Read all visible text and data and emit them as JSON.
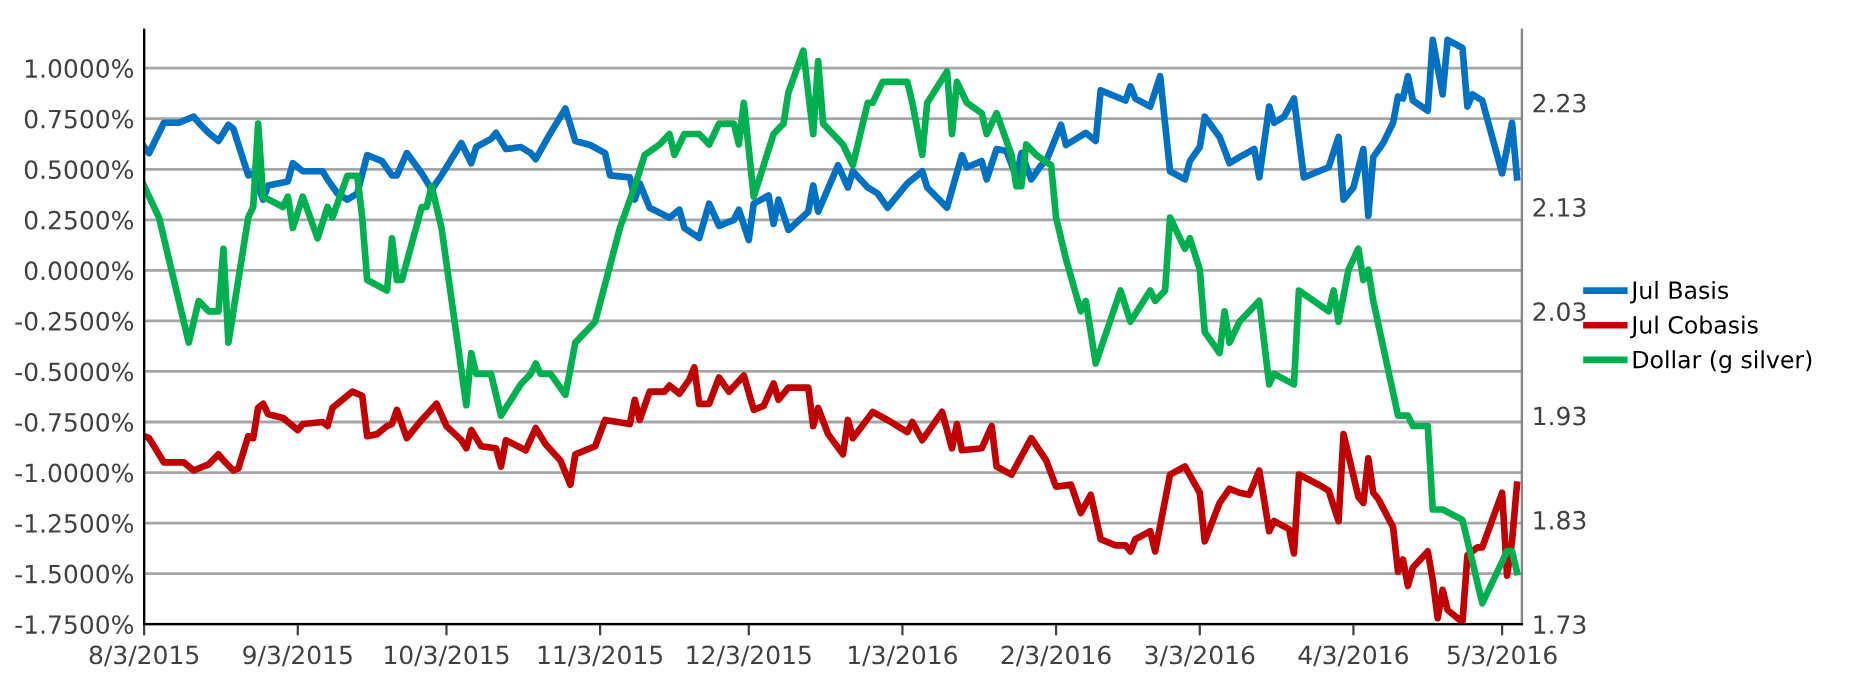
{
  "chart_data": {
    "type": "line",
    "xlim": [
      "2015-08-03",
      "2016-05-07"
    ],
    "xticks": [
      {
        "value": "2015-08-03",
        "label": "8/3/2015"
      },
      {
        "value": "2015-09-03",
        "label": "9/3/2015"
      },
      {
        "value": "2015-10-03",
        "label": "10/3/2015"
      },
      {
        "value": "2015-11-03",
        "label": "11/3/2015"
      },
      {
        "value": "2015-12-03",
        "label": "12/3/2015"
      },
      {
        "value": "2016-01-03",
        "label": "1/3/2016"
      },
      {
        "value": "2016-02-03",
        "label": "2/3/2016"
      },
      {
        "value": "2016-03-03",
        "label": "3/3/2016"
      },
      {
        "value": "2016-04-03",
        "label": "4/3/2016"
      },
      {
        "value": "2016-05-03",
        "label": "5/3/2016"
      }
    ],
    "ylim": [
      -1.75,
      1.19
    ],
    "yticks": [
      {
        "value": 1.0,
        "label": "1.0000%"
      },
      {
        "value": 0.75,
        "label": "0.7500%"
      },
      {
        "value": 0.5,
        "label": "0.5000%"
      },
      {
        "value": 0.25,
        "label": "0.2500%"
      },
      {
        "value": 0.0,
        "label": "0.0000%"
      },
      {
        "value": -0.25,
        "label": "-0.2500%"
      },
      {
        "value": -0.5,
        "label": "-0.5000%"
      },
      {
        "value": -0.75,
        "label": "-0.7500%"
      },
      {
        "value": -1.0,
        "label": "-1.0000%"
      },
      {
        "value": -1.25,
        "label": "-1.2500%"
      },
      {
        "value": -1.5,
        "label": "-1.5000%"
      },
      {
        "value": -1.75,
        "label": "-1.7500%"
      }
    ],
    "y2lim": [
      1.73,
      2.3
    ],
    "y2ticks": [
      1.73,
      1.83,
      1.93,
      2.03,
      2.13,
      2.23
    ],
    "grid": "y",
    "legend": "right",
    "marker": "none",
    "line_style": "solid",
    "series": [
      {
        "name": "Jul Basis",
        "color": "#0070c0",
        "x": [
          "2015-08-03",
          "2015-08-04",
          "2015-08-07",
          "2015-08-10",
          "2015-08-13",
          "2015-08-14",
          "2015-08-16",
          "2015-08-18",
          "2015-08-20",
          "2015-08-21",
          "2015-08-24",
          "2015-08-25",
          "2015-08-27",
          "2015-08-28",
          "2015-09-01",
          "2015-09-02",
          "2015-09-04",
          "2015-09-08",
          "2015-09-09",
          "2015-09-11",
          "2015-09-13",
          "2015-09-15",
          "2015-09-17",
          "2015-09-20",
          "2015-09-22",
          "2015-09-23",
          "2015-09-25",
          "2015-09-28",
          "2015-09-30",
          "2015-10-02",
          "2015-10-06",
          "2015-10-08",
          "2015-10-09",
          "2015-10-12",
          "2015-10-13",
          "2015-10-15",
          "2015-10-18",
          "2015-10-20",
          "2015-10-21",
          "2015-10-24",
          "2015-10-27",
          "2015-10-29",
          "2015-11-01",
          "2015-11-04",
          "2015-11-05",
          "2015-11-09",
          "2015-11-10",
          "2015-11-11",
          "2015-11-13",
          "2015-11-17",
          "2015-11-19",
          "2015-11-20",
          "2015-11-23",
          "2015-11-25",
          "2015-11-27",
          "2015-11-30",
          "2015-12-01",
          "2015-12-03",
          "2015-12-04",
          "2015-12-07",
          "2015-12-08",
          "2015-12-09",
          "2015-12-11",
          "2015-12-15",
          "2015-12-16",
          "2015-12-17",
          "2015-12-21",
          "2015-12-23",
          "2015-12-24",
          "2015-12-27",
          "2015-12-29",
          "2015-12-31",
          "2016-01-04",
          "2016-01-07",
          "2016-01-08",
          "2016-01-12",
          "2016-01-15",
          "2016-01-16",
          "2016-01-19",
          "2016-01-20",
          "2016-01-22",
          "2016-01-24",
          "2016-01-26",
          "2016-01-27",
          "2016-01-29",
          "2016-01-31",
          "2016-02-01",
          "2016-02-04",
          "2016-02-05",
          "2016-02-09",
          "2016-02-11",
          "2016-02-12",
          "2016-02-17",
          "2016-02-18",
          "2016-02-19",
          "2016-02-22",
          "2016-02-24",
          "2016-02-26",
          "2016-02-29",
          "2016-03-01",
          "2016-03-03",
          "2016-03-04",
          "2016-03-07",
          "2016-03-09",
          "2016-03-11",
          "2016-03-14",
          "2016-03-15",
          "2016-03-17",
          "2016-03-18",
          "2016-03-20",
          "2016-03-22",
          "2016-03-24",
          "2016-03-29",
          "2016-03-31",
          "2016-04-01",
          "2016-04-03",
          "2016-04-05",
          "2016-04-06",
          "2016-04-07",
          "2016-04-09",
          "2016-04-11",
          "2016-04-12",
          "2016-04-13",
          "2016-04-14",
          "2016-04-15",
          "2016-04-18",
          "2016-04-19",
          "2016-04-21",
          "2016-04-22",
          "2016-04-25",
          "2016-04-26",
          "2016-04-27",
          "2016-04-29",
          "2016-05-03",
          "2016-05-05",
          "2016-05-06"
        ],
        "values": [
          0.61,
          0.58,
          0.73,
          0.73,
          0.76,
          0.73,
          0.68,
          0.64,
          0.72,
          0.7,
          0.47,
          0.48,
          0.35,
          0.42,
          0.44,
          0.53,
          0.49,
          0.49,
          0.45,
          0.38,
          0.35,
          0.38,
          0.57,
          0.54,
          0.47,
          0.47,
          0.58,
          0.48,
          0.4,
          0.47,
          0.63,
          0.53,
          0.61,
          0.65,
          0.68,
          0.6,
          0.61,
          0.58,
          0.55,
          0.68,
          0.8,
          0.64,
          0.62,
          0.58,
          0.47,
          0.46,
          0.35,
          0.43,
          0.31,
          0.26,
          0.3,
          0.21,
          0.16,
          0.33,
          0.22,
          0.25,
          0.3,
          0.15,
          0.33,
          0.37,
          0.23,
          0.35,
          0.2,
          0.29,
          0.42,
          0.29,
          0.52,
          0.41,
          0.49,
          0.41,
          0.38,
          0.31,
          0.43,
          0.49,
          0.41,
          0.31,
          0.57,
          0.51,
          0.54,
          0.45,
          0.6,
          0.59,
          0.46,
          0.58,
          0.45,
          0.52,
          0.54,
          0.72,
          0.62,
          0.68,
          0.64,
          0.89,
          0.84,
          0.91,
          0.85,
          0.81,
          0.96,
          0.49,
          0.45,
          0.54,
          0.61,
          0.76,
          0.66,
          0.53,
          0.56,
          0.6,
          0.46,
          0.81,
          0.73,
          0.76,
          0.85,
          0.46,
          0.51,
          0.66,
          0.35,
          0.41,
          0.6,
          0.27,
          0.56,
          0.63,
          0.73,
          0.86,
          0.85,
          0.96,
          0.84,
          0.79,
          1.14,
          0.87,
          1.14,
          1.1,
          0.81,
          0.87,
          0.84,
          0.48,
          0.73,
          0.46
        ]
      },
      {
        "name": "Jul Cobasis",
        "color": "#c00000",
        "x": [
          "2015-08-03",
          "2015-08-04",
          "2015-08-07",
          "2015-08-11",
          "2015-08-13",
          "2015-08-16",
          "2015-08-18",
          "2015-08-19",
          "2015-08-21",
          "2015-08-22",
          "2015-08-24",
          "2015-08-25",
          "2015-08-26",
          "2015-08-27",
          "2015-08-28",
          "2015-08-31",
          "2015-09-03",
          "2015-09-04",
          "2015-09-08",
          "2015-09-09",
          "2015-09-10",
          "2015-09-14",
          "2015-09-16",
          "2015-09-17",
          "2015-09-19",
          "2015-09-21",
          "2015-09-22",
          "2015-09-23",
          "2015-09-25",
          "2015-09-28",
          "2015-10-01",
          "2015-10-03",
          "2015-10-06",
          "2015-10-07",
          "2015-10-08",
          "2015-10-10",
          "2015-10-13",
          "2015-10-14",
          "2015-10-15",
          "2015-10-19",
          "2015-10-21",
          "2015-10-23",
          "2015-10-26",
          "2015-10-28",
          "2015-10-29",
          "2015-11-02",
          "2015-11-04",
          "2015-11-09",
          "2015-11-10",
          "2015-11-11",
          "2015-11-13",
          "2015-11-16",
          "2015-11-17",
          "2015-11-19",
          "2015-11-21",
          "2015-11-22",
          "2015-11-23",
          "2015-11-25",
          "2015-11-27",
          "2015-11-29",
          "2015-12-02",
          "2015-12-04",
          "2015-12-06",
          "2015-12-08",
          "2015-12-09",
          "2015-12-11",
          "2015-12-15",
          "2015-12-16",
          "2015-12-17",
          "2015-12-19",
          "2015-12-22",
          "2015-12-23",
          "2015-12-24",
          "2015-12-28",
          "2015-12-31",
          "2016-01-04",
          "2016-01-05",
          "2016-01-07",
          "2016-01-11",
          "2016-01-13",
          "2016-01-14",
          "2016-01-15",
          "2016-01-19",
          "2016-01-21",
          "2016-01-22",
          "2016-01-25",
          "2016-01-29",
          "2016-02-01",
          "2016-02-03",
          "2016-02-06",
          "2016-02-08",
          "2016-02-10",
          "2016-02-12",
          "2016-02-15",
          "2016-02-17",
          "2016-02-18",
          "2016-02-19",
          "2016-02-22",
          "2016-02-23",
          "2016-02-26",
          "2016-02-29",
          "2016-03-03",
          "2016-03-04",
          "2016-03-07",
          "2016-03-09",
          "2016-03-11",
          "2016-03-13",
          "2016-03-15",
          "2016-03-17",
          "2016-03-18",
          "2016-03-21",
          "2016-03-22",
          "2016-03-23",
          "2016-03-27",
          "2016-03-29",
          "2016-03-31",
          "2016-04-01",
          "2016-04-04",
          "2016-04-05",
          "2016-04-06",
          "2016-04-07",
          "2016-04-08",
          "2016-04-11",
          "2016-04-12",
          "2016-04-13",
          "2016-04-14",
          "2016-04-15",
          "2016-04-18",
          "2016-04-19",
          "2016-04-20",
          "2016-04-21",
          "2016-04-22",
          "2016-04-25",
          "2016-04-26",
          "2016-04-28",
          "2016-04-29",
          "2016-05-03",
          "2016-05-04",
          "2016-05-05",
          "2016-05-06"
        ],
        "values": [
          -0.82,
          -0.83,
          -0.95,
          -0.95,
          -0.99,
          -0.96,
          -0.91,
          -0.94,
          -0.99,
          -0.98,
          -0.82,
          -0.83,
          -0.68,
          -0.66,
          -0.71,
          -0.73,
          -0.79,
          -0.76,
          -0.75,
          -0.77,
          -0.68,
          -0.6,
          -0.62,
          -0.82,
          -0.81,
          -0.77,
          -0.76,
          -0.69,
          -0.83,
          -0.74,
          -0.66,
          -0.77,
          -0.84,
          -0.88,
          -0.79,
          -0.87,
          -0.88,
          -0.97,
          -0.84,
          -0.89,
          -0.78,
          -0.86,
          -0.94,
          -1.06,
          -0.91,
          -0.87,
          -0.74,
          -0.76,
          -0.64,
          -0.74,
          -0.6,
          -0.6,
          -0.57,
          -0.61,
          -0.54,
          -0.48,
          -0.66,
          -0.66,
          -0.53,
          -0.6,
          -0.52,
          -0.69,
          -0.67,
          -0.56,
          -0.64,
          -0.58,
          -0.58,
          -0.77,
          -0.68,
          -0.81,
          -0.91,
          -0.74,
          -0.83,
          -0.7,
          -0.74,
          -0.8,
          -0.75,
          -0.84,
          -0.7,
          -0.88,
          -0.76,
          -0.89,
          -0.88,
          -0.77,
          -0.97,
          -1.01,
          -0.83,
          -0.94,
          -1.07,
          -1.06,
          -1.2,
          -1.11,
          -1.33,
          -1.36,
          -1.36,
          -1.39,
          -1.33,
          -1.29,
          -1.39,
          -1.01,
          -0.97,
          -1.1,
          -1.34,
          -1.15,
          -1.08,
          -1.1,
          -1.11,
          -0.99,
          -1.29,
          -1.24,
          -1.28,
          -1.4,
          -1.01,
          -1.06,
          -1.09,
          -1.24,
          -0.81,
          -1.12,
          -1.15,
          -0.93,
          -1.1,
          -1.13,
          -1.27,
          -1.49,
          -1.43,
          -1.56,
          -1.47,
          -1.39,
          -1.53,
          -1.72,
          -1.58,
          -1.68,
          -1.74,
          -1.41,
          -1.37,
          -1.37,
          -1.1,
          -1.51,
          -1.34,
          -1.06
        ]
      },
      {
        "name": "Dollar (g silver)",
        "color": "#00b050",
        "axis": "y2",
        "x": [
          "2015-08-03",
          "2015-08-04",
          "2015-08-06",
          "2015-08-12",
          "2015-08-14",
          "2015-08-16",
          "2015-08-18",
          "2015-08-19",
          "2015-08-20",
          "2015-08-24",
          "2015-08-25",
          "2015-08-26",
          "2015-08-27",
          "2015-08-31",
          "2015-09-01",
          "2015-09-02",
          "2015-09-04",
          "2015-09-07",
          "2015-09-09",
          "2015-09-10",
          "2015-09-13",
          "2015-09-14",
          "2015-09-15",
          "2015-09-16",
          "2015-09-17",
          "2015-09-21",
          "2015-09-22",
          "2015-09-23",
          "2015-09-24",
          "2015-09-28",
          "2015-09-29",
          "2015-09-30",
          "2015-10-02",
          "2015-10-07",
          "2015-10-08",
          "2015-10-09",
          "2015-10-12",
          "2015-10-14",
          "2015-10-18",
          "2015-10-20",
          "2015-10-21",
          "2015-10-22",
          "2015-10-24",
          "2015-10-27",
          "2015-10-29",
          "2015-11-02",
          "2015-11-07",
          "2015-11-10",
          "2015-11-12",
          "2015-11-15",
          "2015-11-17",
          "2015-11-18",
          "2015-11-20",
          "2015-11-23",
          "2015-11-25",
          "2015-11-27",
          "2015-11-30",
          "2015-12-01",
          "2015-12-02",
          "2015-12-04",
          "2015-12-08",
          "2015-12-10",
          "2015-12-11",
          "2015-12-14",
          "2015-12-16",
          "2015-12-17",
          "2015-12-18",
          "2015-12-22",
          "2015-12-24",
          "2015-12-27",
          "2015-12-28",
          "2015-12-30",
          "2016-01-04",
          "2016-01-05",
          "2016-01-07",
          "2016-01-08",
          "2016-01-12",
          "2016-01-13",
          "2016-01-14",
          "2016-01-16",
          "2016-01-19",
          "2016-01-20",
          "2016-01-22",
          "2016-01-25",
          "2016-01-26",
          "2016-01-27",
          "2016-01-28",
          "2016-01-30",
          "2016-02-02",
          "2016-02-03",
          "2016-02-05",
          "2016-02-08",
          "2016-02-09",
          "2016-02-11",
          "2016-02-16",
          "2016-02-18",
          "2016-02-22",
          "2016-02-23",
          "2016-02-25",
          "2016-02-26",
          "2016-02-29",
          "2016-03-01",
          "2016-03-03",
          "2016-03-04",
          "2016-03-07",
          "2016-03-08",
          "2016-03-09",
          "2016-03-11",
          "2016-03-15",
          "2016-03-17",
          "2016-03-18",
          "2016-03-22",
          "2016-03-23",
          "2016-03-29",
          "2016-03-30",
          "2016-03-31",
          "2016-04-02",
          "2016-04-04",
          "2016-04-05",
          "2016-04-06",
          "2016-04-07",
          "2016-04-12",
          "2016-04-14",
          "2016-04-15",
          "2016-04-18",
          "2016-04-19",
          "2016-04-21",
          "2016-04-25",
          "2016-04-26",
          "2016-04-29",
          "2016-05-04",
          "2016-05-05",
          "2016-05-06"
        ],
        "values": [
          2.15,
          2.14,
          2.12,
          2.0,
          2.04,
          2.03,
          2.03,
          2.09,
          2.0,
          2.12,
          2.13,
          2.21,
          2.14,
          2.13,
          2.14,
          2.11,
          2.14,
          2.1,
          2.13,
          2.12,
          2.16,
          2.16,
          2.16,
          2.12,
          2.06,
          2.05,
          2.1,
          2.06,
          2.06,
          2.13,
          2.13,
          2.15,
          2.11,
          1.94,
          1.99,
          1.97,
          1.97,
          1.93,
          1.96,
          1.97,
          1.98,
          1.97,
          1.97,
          1.95,
          2.0,
          2.02,
          2.11,
          2.15,
          2.18,
          2.19,
          2.2,
          2.18,
          2.2,
          2.2,
          2.19,
          2.21,
          2.21,
          2.19,
          2.23,
          2.14,
          2.2,
          2.21,
          2.24,
          2.28,
          2.2,
          2.27,
          2.21,
          2.19,
          2.17,
          2.23,
          2.23,
          2.25,
          2.25,
          2.23,
          2.18,
          2.23,
          2.26,
          2.2,
          2.25,
          2.23,
          2.22,
          2.2,
          2.22,
          2.18,
          2.15,
          2.15,
          2.19,
          2.18,
          2.17,
          2.12,
          2.08,
          2.03,
          2.04,
          1.98,
          2.05,
          2.02,
          2.05,
          2.04,
          2.05,
          2.12,
          2.09,
          2.1,
          2.07,
          2.01,
          1.99,
          2.03,
          2.0,
          2.02,
          2.04,
          1.96,
          1.97,
          1.96,
          2.05,
          2.03,
          2.05,
          2.02,
          2.07,
          2.09,
          2.06,
          2.07,
          2.04,
          1.93,
          1.93,
          1.92,
          1.92,
          1.84,
          1.84,
          1.83,
          1.81,
          1.75,
          1.8,
          1.8,
          1.78
        ]
      }
    ]
  }
}
